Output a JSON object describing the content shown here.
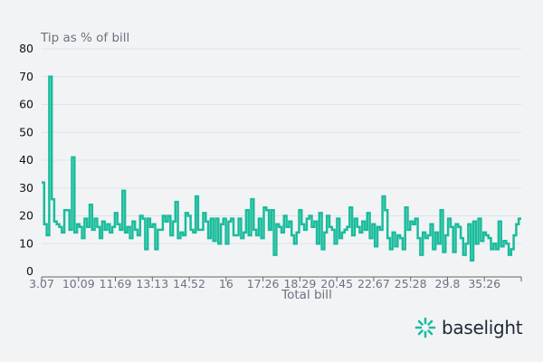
{
  "chart_data": {
    "type": "line",
    "step": true,
    "title": "Tip as % of bill",
    "xlabel": "Total bill",
    "ylabel": "",
    "ylim": [
      0,
      80
    ],
    "yticks": [
      0,
      10,
      20,
      30,
      40,
      50,
      60,
      70,
      80
    ],
    "xtick_labels": [
      "3.07",
      "10.09",
      "11.69",
      "13.13",
      "14.52",
      "16",
      "17.26",
      "18.29",
      "20.45",
      "22.67",
      "25.28",
      "29.8",
      "35.26"
    ],
    "grid": true,
    "color": "#1abc9c",
    "values": [
      32,
      17,
      13,
      70,
      26,
      18,
      17,
      16,
      14,
      22,
      22,
      15,
      41,
      14,
      17,
      16,
      12,
      19,
      16,
      24,
      15,
      19,
      16,
      12,
      18,
      15,
      17,
      14,
      16,
      21,
      17,
      15,
      29,
      14,
      16,
      12,
      18,
      15,
      13,
      20,
      19,
      8,
      19,
      16,
      17,
      8,
      15,
      15,
      20,
      18,
      20,
      13,
      18,
      25,
      12,
      14,
      13,
      21,
      20,
      15,
      14,
      27,
      15,
      15,
      21,
      18,
      12,
      19,
      11,
      19,
      10,
      17,
      19,
      10,
      18,
      19,
      13,
      13,
      19,
      12,
      14,
      22,
      13,
      26,
      15,
      13,
      19,
      12,
      23,
      22,
      15,
      22,
      6,
      17,
      16,
      14,
      20,
      16,
      18,
      13,
      10,
      14,
      22,
      17,
      15,
      19,
      20,
      16,
      18,
      10,
      21,
      8,
      14,
      20,
      16,
      15,
      10,
      19,
      12,
      14,
      15,
      16,
      23,
      13,
      19,
      16,
      14,
      18,
      15,
      21,
      12,
      17,
      9,
      16,
      15,
      27,
      22,
      12,
      8,
      14,
      9,
      13,
      12,
      8,
      23,
      15,
      18,
      17,
      19,
      12,
      6,
      14,
      12,
      13,
      17,
      8,
      14,
      10,
      22,
      7,
      13,
      19,
      16,
      7,
      17,
      16,
      12,
      6,
      10,
      17,
      4,
      18,
      10,
      19,
      11,
      14,
      13,
      12,
      8,
      10,
      8,
      18,
      9,
      11,
      10,
      6,
      8,
      13,
      17,
      19
    ]
  },
  "brand": {
    "name": "baselight",
    "color": "#1abc9c"
  }
}
